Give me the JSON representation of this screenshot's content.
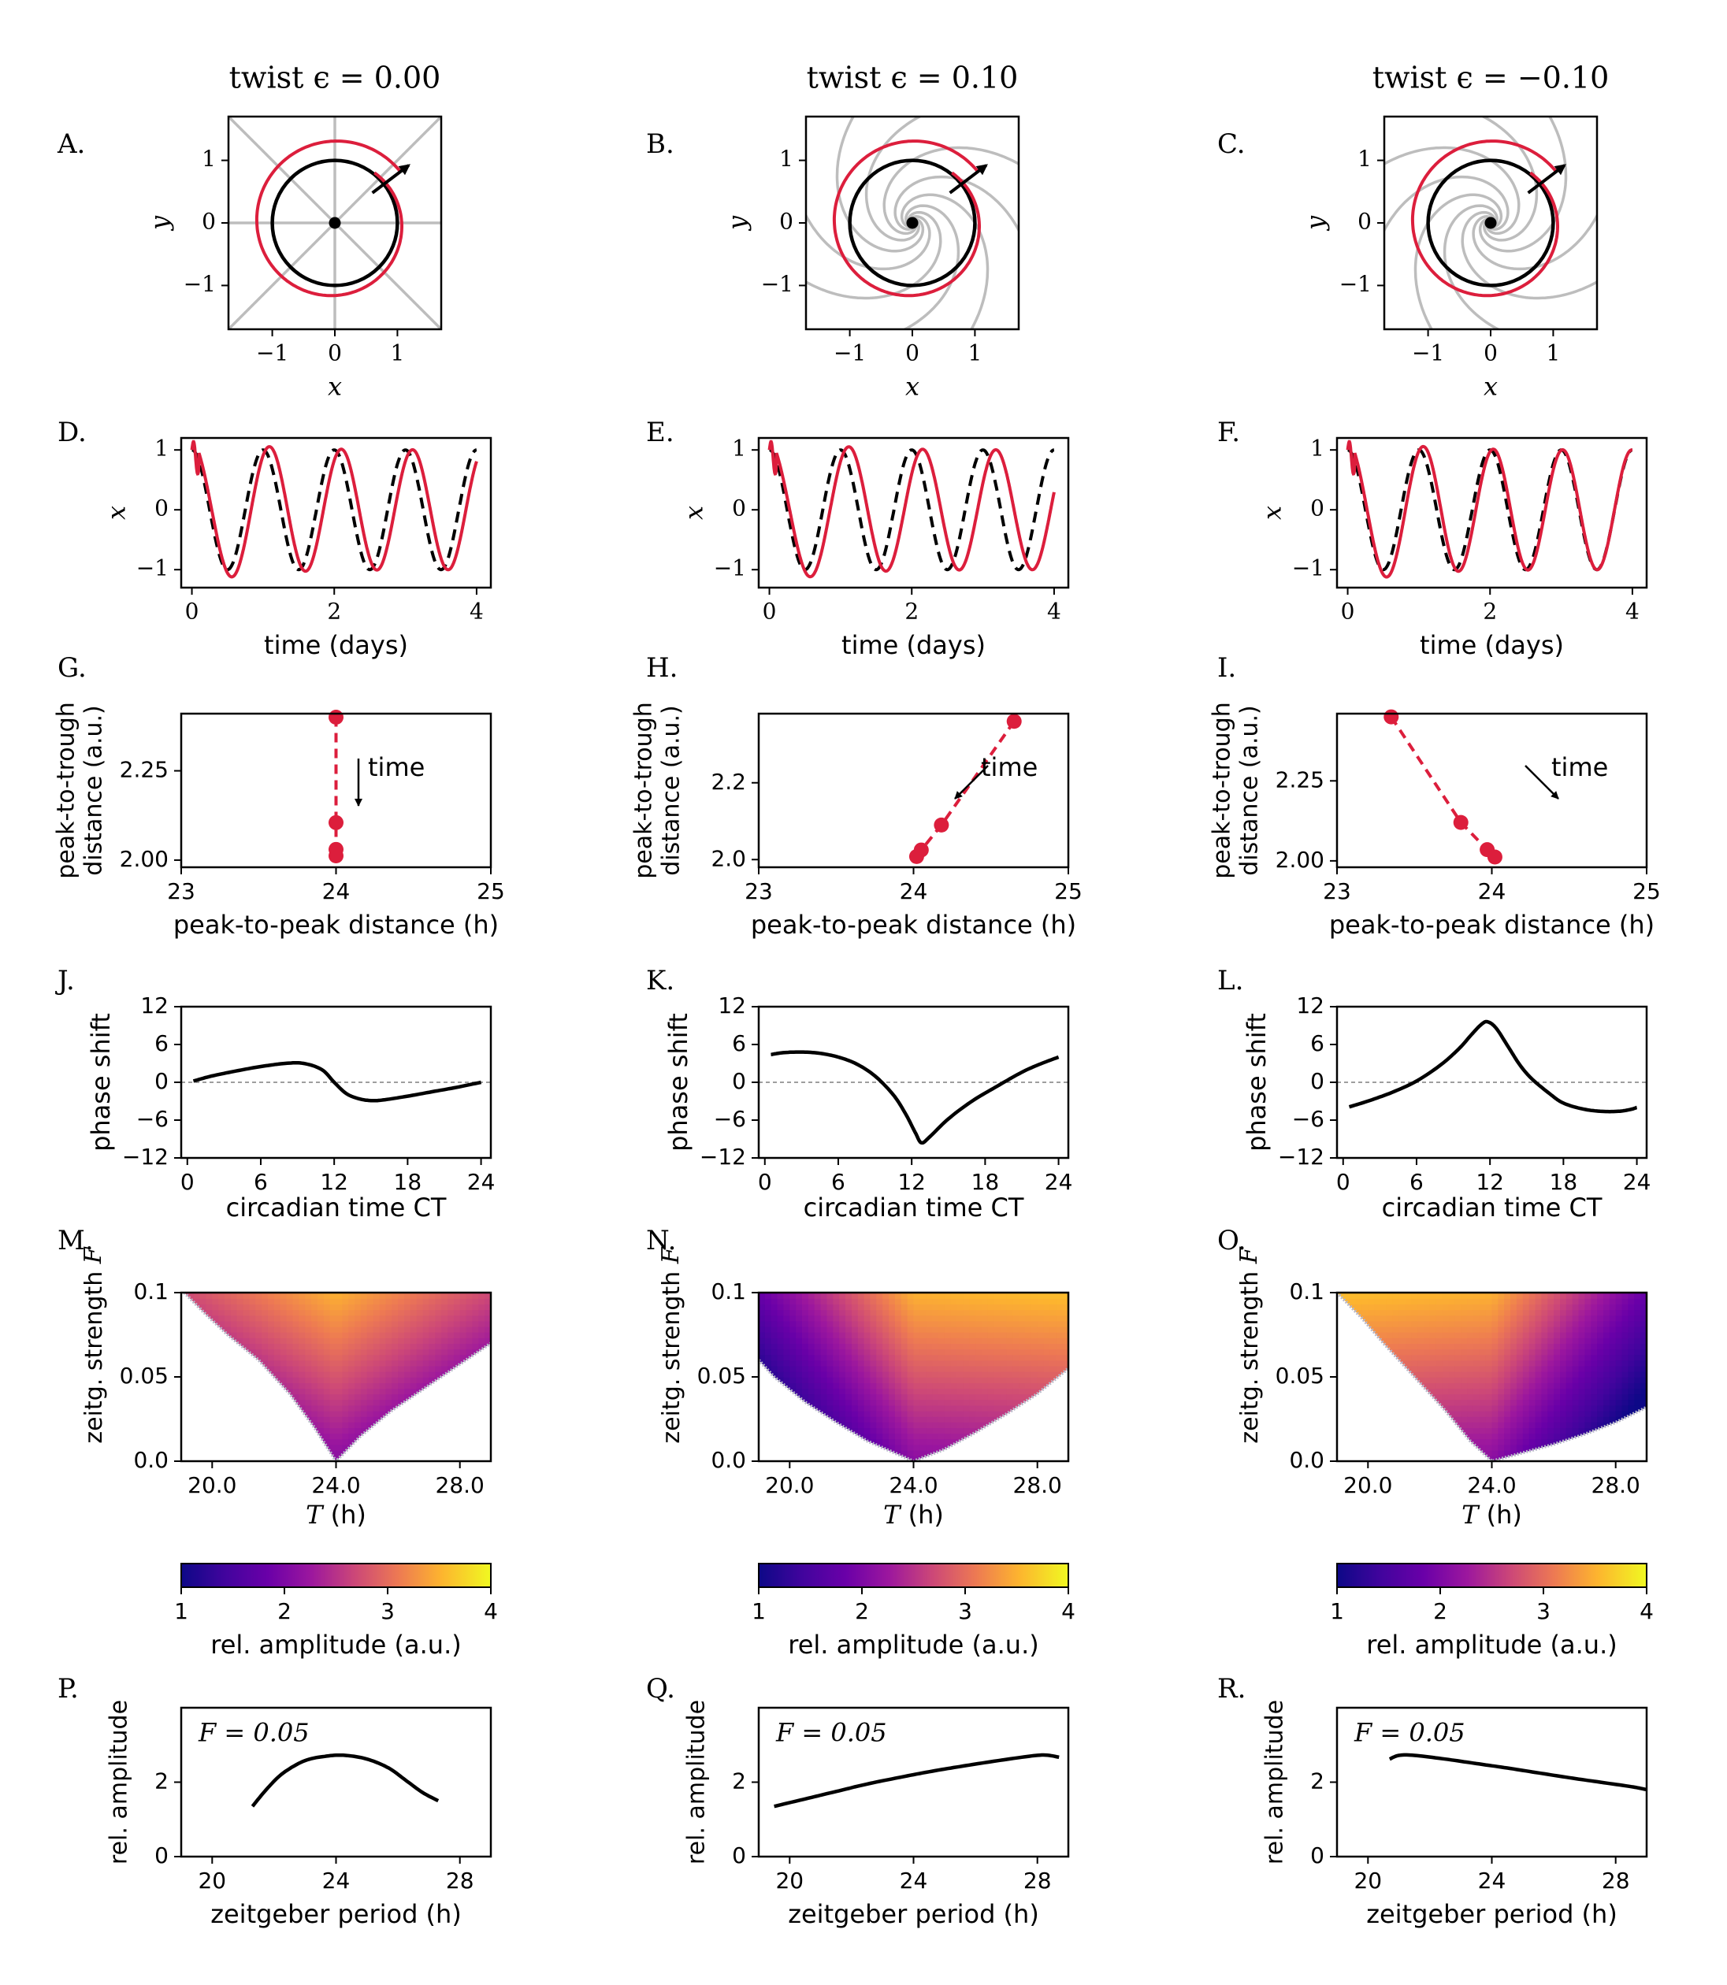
{
  "column_titles": [
    "twist ϵ = 0.00",
    "twist ϵ = 0.10",
    "twist ϵ = −0.10"
  ],
  "twist": [
    0.0,
    0.1,
    -0.1
  ],
  "colors": {
    "response": "#dc1e3c",
    "reference": "#000000",
    "isochron": "#bdbdbd",
    "zero_line": "#7f7f7f"
  },
  "panel_letters": [
    "A.",
    "B.",
    "C.",
    "D.",
    "E.",
    "F.",
    "G.",
    "H.",
    "I.",
    "J.",
    "K.",
    "L.",
    "M.",
    "N.",
    "O.",
    "P.",
    "Q.",
    "R."
  ],
  "chart_data": [
    {
      "row": "phase-plane",
      "type": "line",
      "panels": [
        "A.",
        "B.",
        "C."
      ],
      "xlabel": "x",
      "ylabel": "y",
      "xlim": [
        -1.7,
        1.7
      ],
      "ylim": [
        -1.7,
        1.7
      ],
      "xticks": [
        "−1",
        "0",
        "1"
      ],
      "yticks": [
        "−1",
        "0",
        "1"
      ],
      "limit_cycle_radius": 1.0,
      "isochrons": 8,
      "description_elements": [
        "limit cycle (black)",
        "perturbed trajectory (red)",
        "arrow",
        "isochrons (grey)"
      ]
    },
    {
      "row": "time-series",
      "type": "line",
      "panels": [
        "D.",
        "E.",
        "F."
      ],
      "xlabel": "time (days)",
      "ylabel": "x",
      "xlim": [
        -0.15,
        4.2
      ],
      "ylim": [
        -1.3,
        1.2
      ],
      "xticks": [
        "0",
        "2",
        "4"
      ],
      "yticks": [
        "−1",
        "0",
        "1"
      ],
      "series": [
        {
          "style": "dashed-black",
          "period_days": [
            1.0,
            1.0,
            1.0
          ]
        },
        {
          "style": "solid-red",
          "period_days": [
            1.0,
            1.027,
            0.973
          ]
        }
      ]
    },
    {
      "row": "peak-trough",
      "type": "scatter",
      "panels": [
        "G.",
        "H.",
        "I."
      ],
      "xlabel": "peak-to-peak distance (h)",
      "ylabel": "peak-to-trough\ndistance (a.u.)",
      "annotation": "time",
      "xlim": [
        23,
        25
      ],
      "xticks": [
        "23",
        "24",
        "25"
      ],
      "panels_data": [
        {
          "ylim": [
            1.98,
            2.41
          ],
          "yticks": [
            "2.00",
            "2.25"
          ],
          "ytick_values": [
            2.0,
            2.25
          ],
          "points": [
            [
              24.0,
              2.4
            ],
            [
              24.0,
              2.105
            ],
            [
              24.0,
              2.03
            ],
            [
              24.0,
              2.012
            ]
          ]
        },
        {
          "ylim": [
            1.98,
            2.38
          ],
          "yticks": [
            "2.0",
            "2.2"
          ],
          "ytick_values": [
            2.0,
            2.2
          ],
          "points": [
            [
              24.65,
              2.36
            ],
            [
              24.18,
              2.09
            ],
            [
              24.05,
              2.025
            ],
            [
              24.02,
              2.008
            ]
          ]
        },
        {
          "ylim": [
            1.98,
            2.46
          ],
          "yticks": [
            "2.00",
            "2.25"
          ],
          "ytick_values": [
            2.0,
            2.25
          ],
          "points": [
            [
              23.35,
              2.45
            ],
            [
              23.8,
              2.12
            ],
            [
              23.97,
              2.035
            ],
            [
              24.02,
              2.012
            ]
          ]
        }
      ]
    },
    {
      "row": "prc",
      "type": "line",
      "panels": [
        "J.",
        "K.",
        "L."
      ],
      "xlabel": "circadian time CT",
      "ylabel": "phase shift",
      "xlim": [
        -0.5,
        24.8
      ],
      "ylim": [
        -12,
        12
      ],
      "xticks": [
        "0",
        "6",
        "12",
        "18",
        "24"
      ],
      "yticks": [
        "−12",
        "−6",
        "0",
        "6",
        "12"
      ],
      "series": [
        {
          "x": [
            0.5,
            2,
            4,
            6,
            8,
            9.5,
            11,
            12,
            13,
            14,
            15,
            16,
            18,
            20,
            22,
            24
          ],
          "y": [
            0.2,
            1.0,
            1.8,
            2.5,
            3.0,
            3.0,
            2.0,
            0.0,
            -1.8,
            -2.6,
            -2.9,
            -2.8,
            -2.2,
            -1.5,
            -0.8,
            0.0
          ]
        },
        {
          "x": [
            0.5,
            1.5,
            3,
            4.5,
            6,
            7.5,
            9,
            10.5,
            11.5,
            12.3,
            12.8,
            13.5,
            15,
            17,
            19,
            21,
            22.5,
            24
          ],
          "y": [
            4.4,
            4.7,
            4.8,
            4.6,
            4.0,
            2.9,
            1.0,
            -2.0,
            -5.0,
            -8.0,
            -9.6,
            -8.6,
            -5.8,
            -2.9,
            -0.6,
            1.6,
            2.9,
            4.0
          ]
        },
        {
          "x": [
            0.5,
            2,
            4,
            6,
            8,
            9.5,
            10.5,
            11.3,
            11.8,
            12.5,
            13.5,
            14.5,
            15.5,
            17,
            18,
            19.5,
            21,
            22.5,
            23.5,
            24
          ],
          "y": [
            -3.9,
            -3.0,
            -1.6,
            0.2,
            2.8,
            5.4,
            7.6,
            9.2,
            9.6,
            8.6,
            5.6,
            2.6,
            0.4,
            -2.0,
            -3.3,
            -4.2,
            -4.6,
            -4.6,
            -4.3,
            -4.0
          ]
        }
      ]
    },
    {
      "row": "arnold-tongue",
      "type": "heatmap",
      "panels": [
        "M.",
        "N.",
        "O."
      ],
      "xlabel": "T (h)",
      "ylabel": "zeitg. strength F",
      "xlim": [
        19,
        29
      ],
      "ylim": [
        0.0,
        0.1
      ],
      "xticks": [
        "20.0",
        "24.0",
        "28.0"
      ],
      "yticks": [
        "0.0",
        "0.05",
        "0.1"
      ],
      "tongue_edges": [
        {
          "left": [
            [
              19.1,
              0.1
            ],
            [
              19.8,
              0.087
            ],
            [
              20.5,
              0.075
            ],
            [
              21.5,
              0.06
            ],
            [
              22.5,
              0.04
            ],
            [
              23.3,
              0.02
            ],
            [
              24.0,
              0.0
            ]
          ],
          "right": [
            [
              24.0,
              0.0
            ],
            [
              24.8,
              0.015
            ],
            [
              25.8,
              0.03
            ],
            [
              27,
              0.045
            ],
            [
              28.2,
              0.06
            ],
            [
              29,
              0.07
            ]
          ]
        },
        {
          "left": [
            [
              19.0,
              0.06
            ],
            [
              19.5,
              0.05
            ],
            [
              20.5,
              0.035
            ],
            [
              21.5,
              0.023
            ],
            [
              22.5,
              0.012
            ],
            [
              23.5,
              0.004
            ],
            [
              24.0,
              0.0
            ]
          ],
          "right": [
            [
              24.0,
              0.0
            ],
            [
              25,
              0.007
            ],
            [
              26,
              0.017
            ],
            [
              27,
              0.028
            ],
            [
              28,
              0.04
            ],
            [
              29,
              0.055
            ]
          ]
        },
        {
          "left": [
            [
              19.0,
              0.1
            ],
            [
              19.8,
              0.085
            ],
            [
              20.5,
              0.07
            ],
            [
              21.5,
              0.05
            ],
            [
              22.5,
              0.03
            ],
            [
              23.3,
              0.012
            ],
            [
              24.0,
              0.0
            ]
          ],
          "right": [
            [
              24.0,
              0.0
            ],
            [
              25,
              0.005
            ],
            [
              26,
              0.01
            ],
            [
              27,
              0.016
            ],
            [
              28,
              0.023
            ],
            [
              29,
              0.032
            ]
          ]
        }
      ],
      "amplitude_shift": [
        0.0,
        1.0,
        -1.0
      ]
    },
    {
      "row": "colorbar",
      "type": "heatmap",
      "label": "rel. amplitude (a.u.)",
      "colormap": "plasma",
      "range": [
        1,
        4
      ],
      "ticks": [
        "1",
        "2",
        "3",
        "4"
      ]
    },
    {
      "row": "resonance",
      "type": "line",
      "panels": [
        "P.",
        "Q.",
        "R."
      ],
      "xlabel": "zeitgeber period (h)",
      "ylabel": "rel. amplitude",
      "annotation": "F = 0.05",
      "xlim": [
        19,
        29
      ],
      "ylim": [
        0,
        4
      ],
      "xticks": [
        "20",
        "24",
        "28"
      ],
      "yticks": [
        "0",
        "2"
      ],
      "series": [
        {
          "x": [
            21.3,
            21.8,
            22.3,
            23,
            23.7,
            24.3,
            25,
            25.7,
            26.3,
            26.8,
            27.3
          ],
          "y": [
            1.35,
            1.85,
            2.25,
            2.58,
            2.7,
            2.72,
            2.62,
            2.38,
            2.02,
            1.72,
            1.5
          ]
        },
        {
          "x": [
            19.5,
            20.5,
            21.5,
            22.5,
            23.5,
            24.5,
            25.5,
            26.5,
            27.5,
            28.2,
            28.7
          ],
          "y": [
            1.35,
            1.55,
            1.75,
            1.95,
            2.12,
            2.28,
            2.42,
            2.55,
            2.67,
            2.73,
            2.67
          ]
        },
        {
          "x": [
            20.7,
            21.0,
            21.5,
            22.5,
            23.5,
            24.5,
            25.5,
            26.5,
            27.5,
            28.5,
            29
          ],
          "y": [
            2.62,
            2.72,
            2.72,
            2.62,
            2.5,
            2.38,
            2.25,
            2.12,
            2.0,
            1.88,
            1.8
          ]
        }
      ]
    }
  ]
}
